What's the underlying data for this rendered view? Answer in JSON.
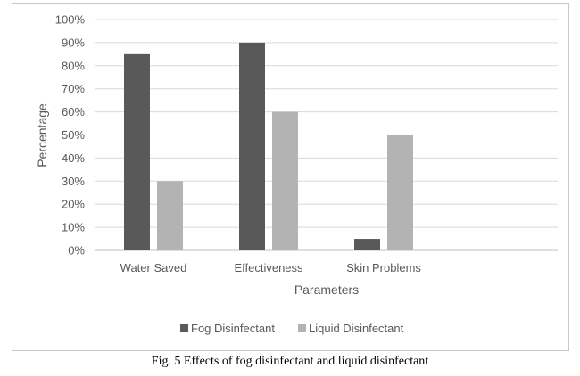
{
  "chart_data": {
    "type": "bar",
    "categories": [
      "Water Saved",
      "Effectiveness",
      "Skin Problems"
    ],
    "series": [
      {
        "name": "Fog Disinfectant",
        "values": [
          85,
          90,
          5
        ],
        "color": "#595959"
      },
      {
        "name": "Liquid Disinfectant",
        "values": [
          30,
          60,
          50
        ],
        "color": "#b3b3b3"
      }
    ],
    "ylim": [
      0,
      100
    ],
    "yticks": [
      "0%",
      "10%",
      "20%",
      "30%",
      "40%",
      "50%",
      "60%",
      "70%",
      "80%",
      "90%",
      "100%"
    ],
    "xlabel": "Parameters",
    "ylabel": "Percentage",
    "grid": true,
    "legend_position": "bottom"
  },
  "caption": "Fig. 5 Effects of fog disinfectant and liquid disinfectant"
}
